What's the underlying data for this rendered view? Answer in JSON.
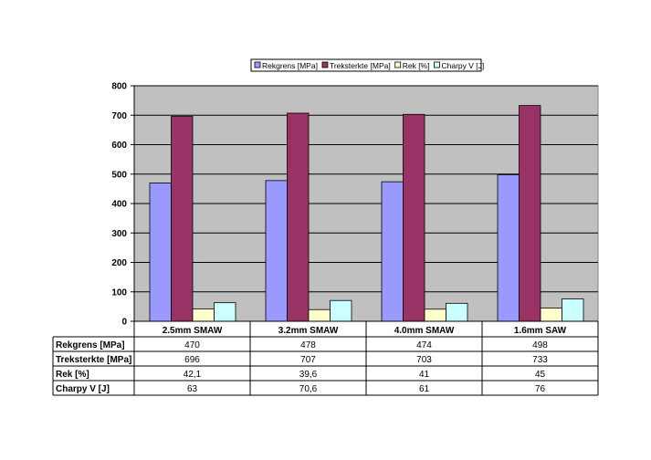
{
  "chart_data": {
    "type": "bar",
    "categories": [
      "2.5mm SMAW",
      "3.2mm SMAW",
      "4.0mm SMAW",
      "1.6mm SAW"
    ],
    "series": [
      {
        "name": "Rekgrens [MPa]",
        "values": [
          470,
          478,
          474,
          498
        ],
        "labels": [
          "470",
          "478",
          "474",
          "498"
        ],
        "color": "#9999FF"
      },
      {
        "name": "Treksterkte [MPa]",
        "values": [
          696,
          707,
          703,
          733
        ],
        "labels": [
          "696",
          "707",
          "703",
          "733"
        ],
        "color": "#993366"
      },
      {
        "name": "Rek [%]",
        "values": [
          42.1,
          39.6,
          41,
          45
        ],
        "labels": [
          "42,1",
          "39,6",
          "41",
          "45"
        ],
        "color": "#FFFFCC"
      },
      {
        "name": "Charpy V [J]",
        "values": [
          63,
          70.6,
          61,
          76
        ],
        "labels": [
          "63",
          "70,6",
          "61",
          "76"
        ],
        "color": "#CCFFFF"
      }
    ],
    "ylim": [
      0,
      800
    ],
    "yticks": [
      0,
      100,
      200,
      300,
      400,
      500,
      600,
      700,
      800
    ],
    "grid": true,
    "legend": "top",
    "data_table": true,
    "plot_background": "#C0C0C0"
  }
}
